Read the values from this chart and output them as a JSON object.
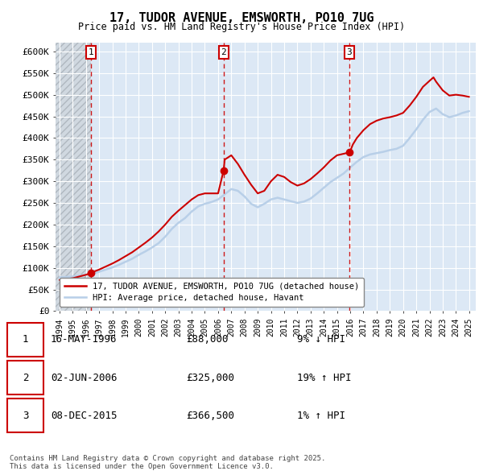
{
  "title": "17, TUDOR AVENUE, EMSWORTH, PO10 7UG",
  "subtitle": "Price paid vs. HM Land Registry's House Price Index (HPI)",
  "ylim": [
    0,
    620000
  ],
  "yticks": [
    0,
    50000,
    100000,
    150000,
    200000,
    250000,
    300000,
    350000,
    400000,
    450000,
    500000,
    550000,
    600000
  ],
  "ytick_labels": [
    "£0",
    "£50K",
    "£100K",
    "£150K",
    "£200K",
    "£250K",
    "£300K",
    "£350K",
    "£400K",
    "£450K",
    "£500K",
    "£550K",
    "£600K"
  ],
  "sale_year_floats": [
    1996.38,
    2006.42,
    2015.92
  ],
  "sale_prices": [
    88000,
    325000,
    366500
  ],
  "sale_labels": [
    "1",
    "2",
    "3"
  ],
  "hpi_line_color": "#b8cfe8",
  "price_line_color": "#cc0000",
  "dashed_line_color": "#cc0000",
  "marker_color": "#cc0000",
  "legend_entries": [
    "17, TUDOR AVENUE, EMSWORTH, PO10 7UG (detached house)",
    "HPI: Average price, detached house, Havant"
  ],
  "table_rows": [
    [
      "1",
      "16-MAY-1996",
      "£88,000",
      "9% ↓ HPI"
    ],
    [
      "2",
      "02-JUN-2006",
      "£325,000",
      "19% ↑ HPI"
    ],
    [
      "3",
      "08-DEC-2015",
      "£366,500",
      "1% ↑ HPI"
    ]
  ],
  "footer": "Contains HM Land Registry data © Crown copyright and database right 2025.\nThis data is licensed under the Open Government Licence v3.0.",
  "plot_bg_color": "#dce8f5",
  "grid_color": "#ffffff",
  "hatch_end_year": 1996.38,
  "xlim": [
    1993.7,
    2025.5
  ],
  "hpi_data": [
    [
      1994.0,
      78000
    ],
    [
      1994.5,
      79000
    ],
    [
      1995.0,
      80000
    ],
    [
      1995.5,
      82000
    ],
    [
      1996.0,
      84000
    ],
    [
      1996.5,
      86000
    ],
    [
      1997.0,
      91000
    ],
    [
      1997.5,
      96000
    ],
    [
      1998.0,
      101000
    ],
    [
      1998.5,
      107000
    ],
    [
      1999.0,
      114000
    ],
    [
      1999.5,
      121000
    ],
    [
      2000.0,
      130000
    ],
    [
      2000.5,
      138000
    ],
    [
      2001.0,
      147000
    ],
    [
      2001.5,
      157000
    ],
    [
      2002.0,
      172000
    ],
    [
      2002.5,
      190000
    ],
    [
      2003.0,
      204000
    ],
    [
      2003.5,
      215000
    ],
    [
      2004.0,
      230000
    ],
    [
      2004.5,
      242000
    ],
    [
      2005.0,
      248000
    ],
    [
      2005.5,
      252000
    ],
    [
      2006.0,
      258000
    ],
    [
      2006.5,
      270000
    ],
    [
      2007.0,
      282000
    ],
    [
      2007.5,
      278000
    ],
    [
      2008.0,
      265000
    ],
    [
      2008.5,
      248000
    ],
    [
      2009.0,
      240000
    ],
    [
      2009.5,
      248000
    ],
    [
      2010.0,
      258000
    ],
    [
      2010.5,
      262000
    ],
    [
      2011.0,
      258000
    ],
    [
      2011.5,
      254000
    ],
    [
      2012.0,
      250000
    ],
    [
      2012.5,
      253000
    ],
    [
      2013.0,
      260000
    ],
    [
      2013.5,
      272000
    ],
    [
      2014.0,
      285000
    ],
    [
      2014.5,
      298000
    ],
    [
      2015.0,
      308000
    ],
    [
      2015.5,
      318000
    ],
    [
      2016.0,
      332000
    ],
    [
      2016.5,
      345000
    ],
    [
      2017.0,
      356000
    ],
    [
      2017.5,
      362000
    ],
    [
      2018.0,
      365000
    ],
    [
      2018.5,
      368000
    ],
    [
      2019.0,
      372000
    ],
    [
      2019.5,
      375000
    ],
    [
      2020.0,
      382000
    ],
    [
      2020.5,
      400000
    ],
    [
      2021.0,
      420000
    ],
    [
      2021.5,
      442000
    ],
    [
      2022.0,
      460000
    ],
    [
      2022.5,
      468000
    ],
    [
      2023.0,
      455000
    ],
    [
      2023.5,
      448000
    ],
    [
      2024.0,
      452000
    ],
    [
      2024.5,
      458000
    ],
    [
      2025.0,
      462000
    ]
  ],
  "price_data": [
    [
      1994.0,
      72000
    ],
    [
      1994.5,
      74000
    ],
    [
      1995.0,
      76000
    ],
    [
      1995.5,
      80000
    ],
    [
      1996.0,
      84000
    ],
    [
      1996.38,
      88000
    ],
    [
      1996.5,
      90000
    ],
    [
      1997.0,
      96000
    ],
    [
      1997.5,
      103000
    ],
    [
      1998.0,
      110000
    ],
    [
      1998.5,
      118000
    ],
    [
      1999.0,
      127000
    ],
    [
      1999.5,
      136000
    ],
    [
      2000.0,
      147000
    ],
    [
      2000.5,
      158000
    ],
    [
      2001.0,
      170000
    ],
    [
      2001.5,
      184000
    ],
    [
      2002.0,
      200000
    ],
    [
      2002.5,
      218000
    ],
    [
      2003.0,
      232000
    ],
    [
      2003.5,
      245000
    ],
    [
      2004.0,
      258000
    ],
    [
      2004.5,
      268000
    ],
    [
      2005.0,
      272000
    ],
    [
      2005.5,
      272000
    ],
    [
      2006.0,
      272000
    ],
    [
      2006.42,
      325000
    ],
    [
      2006.5,
      350000
    ],
    [
      2007.0,
      360000
    ],
    [
      2007.5,
      340000
    ],
    [
      2008.0,
      315000
    ],
    [
      2008.5,
      292000
    ],
    [
      2009.0,
      272000
    ],
    [
      2009.5,
      278000
    ],
    [
      2010.0,
      300000
    ],
    [
      2010.5,
      315000
    ],
    [
      2011.0,
      310000
    ],
    [
      2011.5,
      298000
    ],
    [
      2012.0,
      290000
    ],
    [
      2012.5,
      295000
    ],
    [
      2013.0,
      305000
    ],
    [
      2013.5,
      318000
    ],
    [
      2014.0,
      332000
    ],
    [
      2014.5,
      348000
    ],
    [
      2015.0,
      360000
    ],
    [
      2015.92,
      366500
    ],
    [
      2016.0,
      370000
    ],
    [
      2016.2,
      385000
    ],
    [
      2016.5,
      400000
    ],
    [
      2017.0,
      418000
    ],
    [
      2017.5,
      432000
    ],
    [
      2018.0,
      440000
    ],
    [
      2018.5,
      445000
    ],
    [
      2019.0,
      448000
    ],
    [
      2019.5,
      452000
    ],
    [
      2020.0,
      458000
    ],
    [
      2020.5,
      475000
    ],
    [
      2021.0,
      495000
    ],
    [
      2021.5,
      518000
    ],
    [
      2022.0,
      532000
    ],
    [
      2022.3,
      540000
    ],
    [
      2022.5,
      530000
    ],
    [
      2023.0,
      510000
    ],
    [
      2023.5,
      498000
    ],
    [
      2024.0,
      500000
    ],
    [
      2024.5,
      498000
    ],
    [
      2025.0,
      495000
    ]
  ]
}
